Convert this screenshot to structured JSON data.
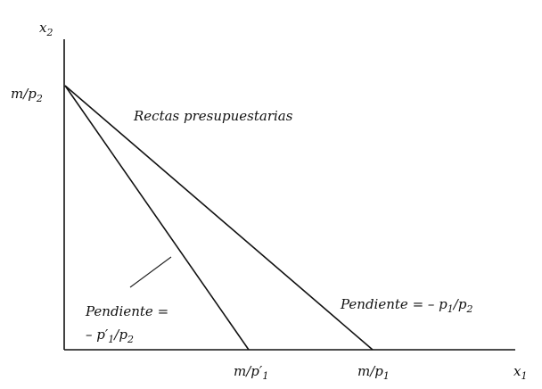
{
  "axes": {
    "y_label": "x",
    "y_label_sub": "2",
    "x_label": "x",
    "x_label_sub": "1"
  },
  "intercepts": {
    "y_intercept": {
      "num": "m",
      "slash": "/",
      "den": "p",
      "den_sub": "2"
    },
    "x_intercept_new": {
      "num": "m",
      "slash": "/",
      "den": "p′",
      "den_sub": "1"
    },
    "x_intercept_orig": {
      "num": "m",
      "slash": "/",
      "den": "p",
      "den_sub": "1"
    }
  },
  "annotations": {
    "title": "Rectas presupuestarias",
    "slope_new_line1": "Pendiente =",
    "slope_new_line2_prefix": "– p",
    "slope_new_line2_prime": "′",
    "slope_new_line2_sub1": "1",
    "slope_new_line2_mid": "/p",
    "slope_new_line2_sub2": "2",
    "slope_orig_prefix": "Pendiente = – p",
    "slope_orig_sub1": "1",
    "slope_orig_mid": "/p",
    "slope_orig_sub2": "2"
  }
}
